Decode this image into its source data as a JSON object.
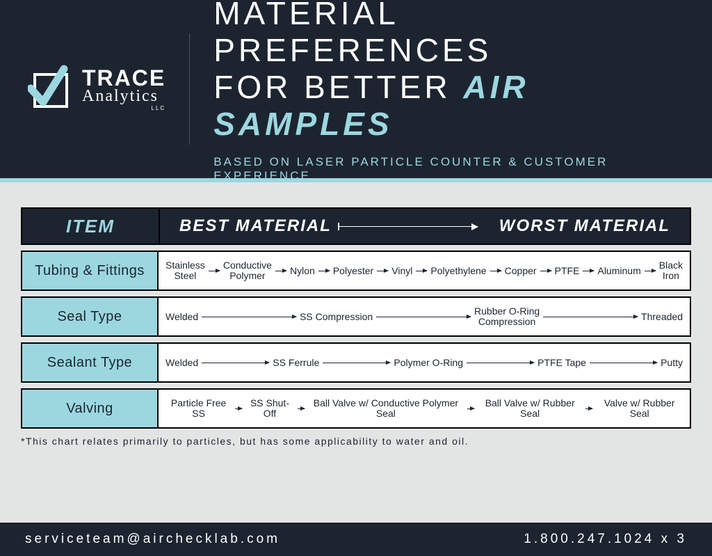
{
  "colors": {
    "dark": "#1c2430",
    "accent": "#9cd7e0",
    "page_bg": "#e3e4e4",
    "white": "#ffffff",
    "border": "#000000"
  },
  "logo": {
    "trace": "TRACE",
    "analytics": "Analytics",
    "llc": "LLC"
  },
  "title": {
    "line1": "MATERIAL PREFERENCES",
    "line2_a": "FOR BETTER ",
    "line2_b": "AIR SAMPLES",
    "subtitle": "BASED ON LASER PARTICLE COUNTER & CUSTOMER EXPERIENCE"
  },
  "table": {
    "header": {
      "item": "ITEM",
      "best": "BEST MATERIAL",
      "worst": "WORST MATERIAL"
    },
    "rows": [
      {
        "item": "Tubing & Fittings",
        "arrow_style": "short",
        "materials": [
          "Stainless\nSteel",
          "Conductive\nPolymer",
          "Nylon",
          "Polyester",
          "Vinyl",
          "Polyethylene",
          "Copper",
          "PTFE",
          "Aluminum",
          "Black\nIron"
        ]
      },
      {
        "item": "Seal Type",
        "arrow_style": "long",
        "materials": [
          "Welded",
          "SS Compression",
          "Rubber O-Ring\nCompression",
          "Threaded"
        ]
      },
      {
        "item": "Sealant Type",
        "arrow_style": "long",
        "materials": [
          "Welded",
          "SS Ferrule",
          "Polymer O-Ring",
          "PTFE Tape",
          "Putty"
        ]
      },
      {
        "item": "Valving",
        "arrow_style": "short",
        "materials": [
          "Particle Free SS",
          "SS Shut-Off",
          "Ball Valve w/ Conductive Polymer Seal",
          "Ball Valve w/ Rubber Seal",
          "Valve w/ Rubber Seal"
        ]
      }
    ]
  },
  "footnote": "*This chart relates primarily to particles, but has some applicability to water and oil.",
  "footer": {
    "email": "serviceteam@airchecklab.com",
    "phone": "1.800.247.1024 x 3"
  }
}
